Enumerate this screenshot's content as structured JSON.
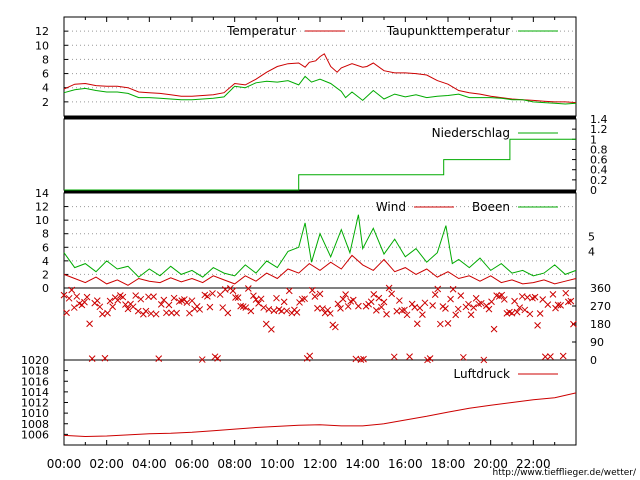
{
  "chart_data": [
    {
      "type": "line",
      "panel": "temperature",
      "ylim": [
        0,
        14
      ],
      "yticks": [
        2,
        4,
        6,
        8,
        10,
        12
      ],
      "grid": true,
      "legend_placement": "top",
      "series": [
        {
          "name": "Temperatur",
          "color": "#cc0000",
          "points": [
            [
              0,
              3.8
            ],
            [
              0.5,
              4.5
            ],
            [
              1,
              4.6
            ],
            [
              1.5,
              4.3
            ],
            [
              2,
              4.2
            ],
            [
              2.5,
              4.2
            ],
            [
              3,
              4.0
            ],
            [
              3.5,
              3.4
            ],
            [
              4,
              3.3
            ],
            [
              4.5,
              3.2
            ],
            [
              5,
              3.0
            ],
            [
              5.5,
              2.8
            ],
            [
              6,
              2.8
            ],
            [
              6.5,
              2.9
            ],
            [
              7,
              3.0
            ],
            [
              7.5,
              3.3
            ],
            [
              8,
              4.6
            ],
            [
              8.5,
              4.4
            ],
            [
              9,
              5.2
            ],
            [
              9.5,
              6.2
            ],
            [
              10,
              7.0
            ],
            [
              10.5,
              7.4
            ],
            [
              11,
              7.5
            ],
            [
              11.3,
              6.9
            ],
            [
              11.5,
              7.6
            ],
            [
              11.8,
              7.8
            ],
            [
              12,
              8.4
            ],
            [
              12.2,
              8.8
            ],
            [
              12.5,
              7.0
            ],
            [
              12.8,
              6.2
            ],
            [
              13,
              6.8
            ],
            [
              13.5,
              7.4
            ],
            [
              14,
              6.9
            ],
            [
              14.2,
              7.0
            ],
            [
              14.5,
              7.5
            ],
            [
              15,
              6.4
            ],
            [
              15.5,
              6.1
            ],
            [
              16,
              6.1
            ],
            [
              16.5,
              6.0
            ],
            [
              17,
              5.8
            ],
            [
              17.5,
              5.0
            ],
            [
              18,
              4.5
            ],
            [
              18.5,
              3.6
            ],
            [
              19,
              3.3
            ],
            [
              19.5,
              3.1
            ],
            [
              20,
              2.8
            ],
            [
              20.5,
              2.6
            ],
            [
              21,
              2.4
            ],
            [
              21.5,
              2.3
            ],
            [
              22,
              2.2
            ],
            [
              22.5,
              2.1
            ],
            [
              23,
              2.0
            ],
            [
              23.5,
              2.0
            ],
            [
              24,
              1.9
            ]
          ]
        },
        {
          "name": "Taupunkttemperatur",
          "color": "#00aa00",
          "points": [
            [
              0,
              3.3
            ],
            [
              0.5,
              3.7
            ],
            [
              1,
              3.9
            ],
            [
              1.5,
              3.6
            ],
            [
              2,
              3.4
            ],
            [
              2.5,
              3.4
            ],
            [
              3,
              3.2
            ],
            [
              3.5,
              2.6
            ],
            [
              4,
              2.6
            ],
            [
              4.5,
              2.5
            ],
            [
              5,
              2.4
            ],
            [
              5.5,
              2.3
            ],
            [
              6,
              2.3
            ],
            [
              6.5,
              2.4
            ],
            [
              7,
              2.5
            ],
            [
              7.5,
              2.7
            ],
            [
              8,
              4.2
            ],
            [
              8.5,
              4.0
            ],
            [
              9,
              4.7
            ],
            [
              9.5,
              4.9
            ],
            [
              10,
              4.8
            ],
            [
              10.5,
              5.0
            ],
            [
              11,
              4.4
            ],
            [
              11.3,
              5.6
            ],
            [
              11.6,
              4.8
            ],
            [
              12,
              5.2
            ],
            [
              12.5,
              4.6
            ],
            [
              13,
              3.5
            ],
            [
              13.2,
              2.6
            ],
            [
              13.5,
              3.4
            ],
            [
              14,
              2.2
            ],
            [
              14.5,
              3.6
            ],
            [
              15,
              2.4
            ],
            [
              15.5,
              3.1
            ],
            [
              16,
              2.7
            ],
            [
              16.5,
              3.0
            ],
            [
              17,
              2.6
            ],
            [
              17.5,
              2.8
            ],
            [
              18,
              2.9
            ],
            [
              18.5,
              3.1
            ],
            [
              19,
              2.6
            ],
            [
              19.5,
              2.6
            ],
            [
              20,
              2.6
            ],
            [
              20.5,
              2.5
            ],
            [
              21,
              2.3
            ],
            [
              21.5,
              2.3
            ],
            [
              22,
              2.0
            ],
            [
              22.5,
              1.9
            ],
            [
              23,
              1.8
            ],
            [
              23.5,
              1.7
            ],
            [
              24,
              1.8
            ]
          ]
        }
      ]
    },
    {
      "type": "line",
      "panel": "precipitation",
      "ylim": [
        0,
        1.4
      ],
      "yticks": [
        0,
        0.2,
        0.4,
        0.6,
        0.8,
        1,
        1.2,
        1.4
      ],
      "legend_placement": "top",
      "series": [
        {
          "name": "Niederschlag",
          "color": "#00aa00",
          "points": [
            [
              0,
              0
            ],
            [
              11,
              0
            ],
            [
              11,
              0.3
            ],
            [
              17.8,
              0.3
            ],
            [
              17.8,
              0.6
            ],
            [
              20.9,
              0.6
            ],
            [
              20.9,
              1.0
            ],
            [
              24,
              1.0
            ]
          ]
        }
      ]
    },
    {
      "type": "line",
      "panel": "wind",
      "ylim": [
        0,
        14
      ],
      "yticks": [
        0,
        2,
        4,
        6,
        8,
        10,
        12,
        14
      ],
      "right_labels": [
        "5",
        "4"
      ],
      "grid": true,
      "legend_placement": "top",
      "series": [
        {
          "name": "Wind",
          "color": "#cc0000",
          "points": [
            [
              0,
              2.0
            ],
            [
              0.5,
              1.4
            ],
            [
              1,
              0.8
            ],
            [
              1.5,
              1.6
            ],
            [
              2,
              0.6
            ],
            [
              2.5,
              1.2
            ],
            [
              3,
              0.4
            ],
            [
              3.5,
              1.4
            ],
            [
              4,
              1.0
            ],
            [
              4.5,
              0.8
            ],
            [
              5,
              1.5
            ],
            [
              5.5,
              0.9
            ],
            [
              6,
              1.4
            ],
            [
              6.5,
              0.8
            ],
            [
              7,
              1.8
            ],
            [
              7.5,
              1.2
            ],
            [
              8,
              0.6
            ],
            [
              8.5,
              1.8
            ],
            [
              9,
              1.0
            ],
            [
              9.5,
              2.2
            ],
            [
              10,
              1.4
            ],
            [
              10.5,
              2.8
            ],
            [
              11,
              2.2
            ],
            [
              11.5,
              3.6
            ],
            [
              12,
              2.6
            ],
            [
              12.5,
              3.8
            ],
            [
              13,
              2.8
            ],
            [
              13.5,
              4.8
            ],
            [
              14,
              3.4
            ],
            [
              14.5,
              2.6
            ],
            [
              15,
              4.2
            ],
            [
              15.5,
              2.4
            ],
            [
              16,
              3.0
            ],
            [
              16.5,
              2.0
            ],
            [
              17,
              2.8
            ],
            [
              17.5,
              1.6
            ],
            [
              18,
              2.4
            ],
            [
              18.5,
              1.4
            ],
            [
              19,
              1.8
            ],
            [
              19.5,
              1.0
            ],
            [
              20,
              1.8
            ],
            [
              20.5,
              0.8
            ],
            [
              21,
              1.2
            ],
            [
              21.5,
              0.6
            ],
            [
              22,
              0.8
            ],
            [
              22.5,
              1.2
            ],
            [
              23,
              0.6
            ],
            [
              23.5,
              1.0
            ],
            [
              24,
              1.4
            ]
          ]
        },
        {
          "name": "Boeen",
          "color": "#00aa00",
          "points": [
            [
              0,
              5.2
            ],
            [
              0.5,
              3.0
            ],
            [
              1,
              3.6
            ],
            [
              1.5,
              2.4
            ],
            [
              2,
              4.0
            ],
            [
              2.5,
              2.8
            ],
            [
              3,
              3.2
            ],
            [
              3.5,
              1.6
            ],
            [
              4,
              2.8
            ],
            [
              4.5,
              1.8
            ],
            [
              5,
              3.2
            ],
            [
              5.5,
              2.0
            ],
            [
              6,
              2.6
            ],
            [
              6.5,
              1.6
            ],
            [
              7,
              3.0
            ],
            [
              7.5,
              2.2
            ],
            [
              8,
              1.8
            ],
            [
              8.5,
              3.4
            ],
            [
              9,
              2.2
            ],
            [
              9.5,
              4.0
            ],
            [
              10,
              3.0
            ],
            [
              10.5,
              5.4
            ],
            [
              11,
              6.0
            ],
            [
              11.3,
              9.6
            ],
            [
              11.6,
              3.8
            ],
            [
              12,
              8.0
            ],
            [
              12.5,
              4.6
            ],
            [
              13,
              8.6
            ],
            [
              13.4,
              5.2
            ],
            [
              13.8,
              10.8
            ],
            [
              14,
              5.8
            ],
            [
              14.5,
              8.8
            ],
            [
              15,
              5.0
            ],
            [
              15.5,
              7.2
            ],
            [
              16,
              4.6
            ],
            [
              16.5,
              5.8
            ],
            [
              17,
              3.8
            ],
            [
              17.5,
              5.2
            ],
            [
              17.9,
              9.2
            ],
            [
              18.2,
              3.6
            ],
            [
              18.5,
              4.2
            ],
            [
              19,
              3.0
            ],
            [
              19.5,
              4.4
            ],
            [
              20,
              2.6
            ],
            [
              20.5,
              3.6
            ],
            [
              21,
              2.2
            ],
            [
              21.5,
              2.6
            ],
            [
              22,
              1.8
            ],
            [
              22.5,
              2.2
            ],
            [
              23,
              3.4
            ],
            [
              23.5,
              2.0
            ],
            [
              24,
              2.6
            ]
          ]
        }
      ]
    },
    {
      "type": "scatter",
      "panel": "wind_direction",
      "ylim": [
        0,
        360
      ],
      "yticks": [
        0,
        90,
        180,
        270,
        360
      ],
      "marker": "x",
      "color": "#cc0000",
      "seed": 11
    },
    {
      "type": "line",
      "panel": "pressure",
      "ylim": [
        1004,
        1020
      ],
      "yticks": [
        1006,
        1008,
        1010,
        1012,
        1014,
        1016,
        1018,
        1020
      ],
      "legend_placement": "top",
      "series": [
        {
          "name": "Luftdruck",
          "color": "#cc0000",
          "points": [
            [
              0,
              1005.8
            ],
            [
              1,
              1005.6
            ],
            [
              2,
              1005.7
            ],
            [
              3,
              1005.9
            ],
            [
              4,
              1006.1
            ],
            [
              5,
              1006.2
            ],
            [
              6,
              1006.4
            ],
            [
              7,
              1006.7
            ],
            [
              8,
              1007.0
            ],
            [
              9,
              1007.3
            ],
            [
              10,
              1007.5
            ],
            [
              11,
              1007.7
            ],
            [
              12,
              1007.8
            ],
            [
              13,
              1007.6
            ],
            [
              14,
              1007.6
            ],
            [
              15,
              1008.0
            ],
            [
              16,
              1008.7
            ],
            [
              17,
              1009.4
            ],
            [
              18,
              1010.2
            ],
            [
              19,
              1010.9
            ],
            [
              20,
              1011.5
            ],
            [
              21,
              1012.0
            ],
            [
              22,
              1012.5
            ],
            [
              23,
              1012.9
            ],
            [
              24,
              1013.8
            ]
          ]
        }
      ]
    }
  ],
  "x_axis": {
    "ticks": [
      "00:00",
      "02:00",
      "04:00",
      "06:00",
      "08:00",
      "10:00",
      "12:00",
      "14:00",
      "16:00",
      "18:00",
      "20:00",
      "22:00"
    ]
  },
  "footer": {
    "url": "http://www.tiefflieger.de/wetter/"
  }
}
